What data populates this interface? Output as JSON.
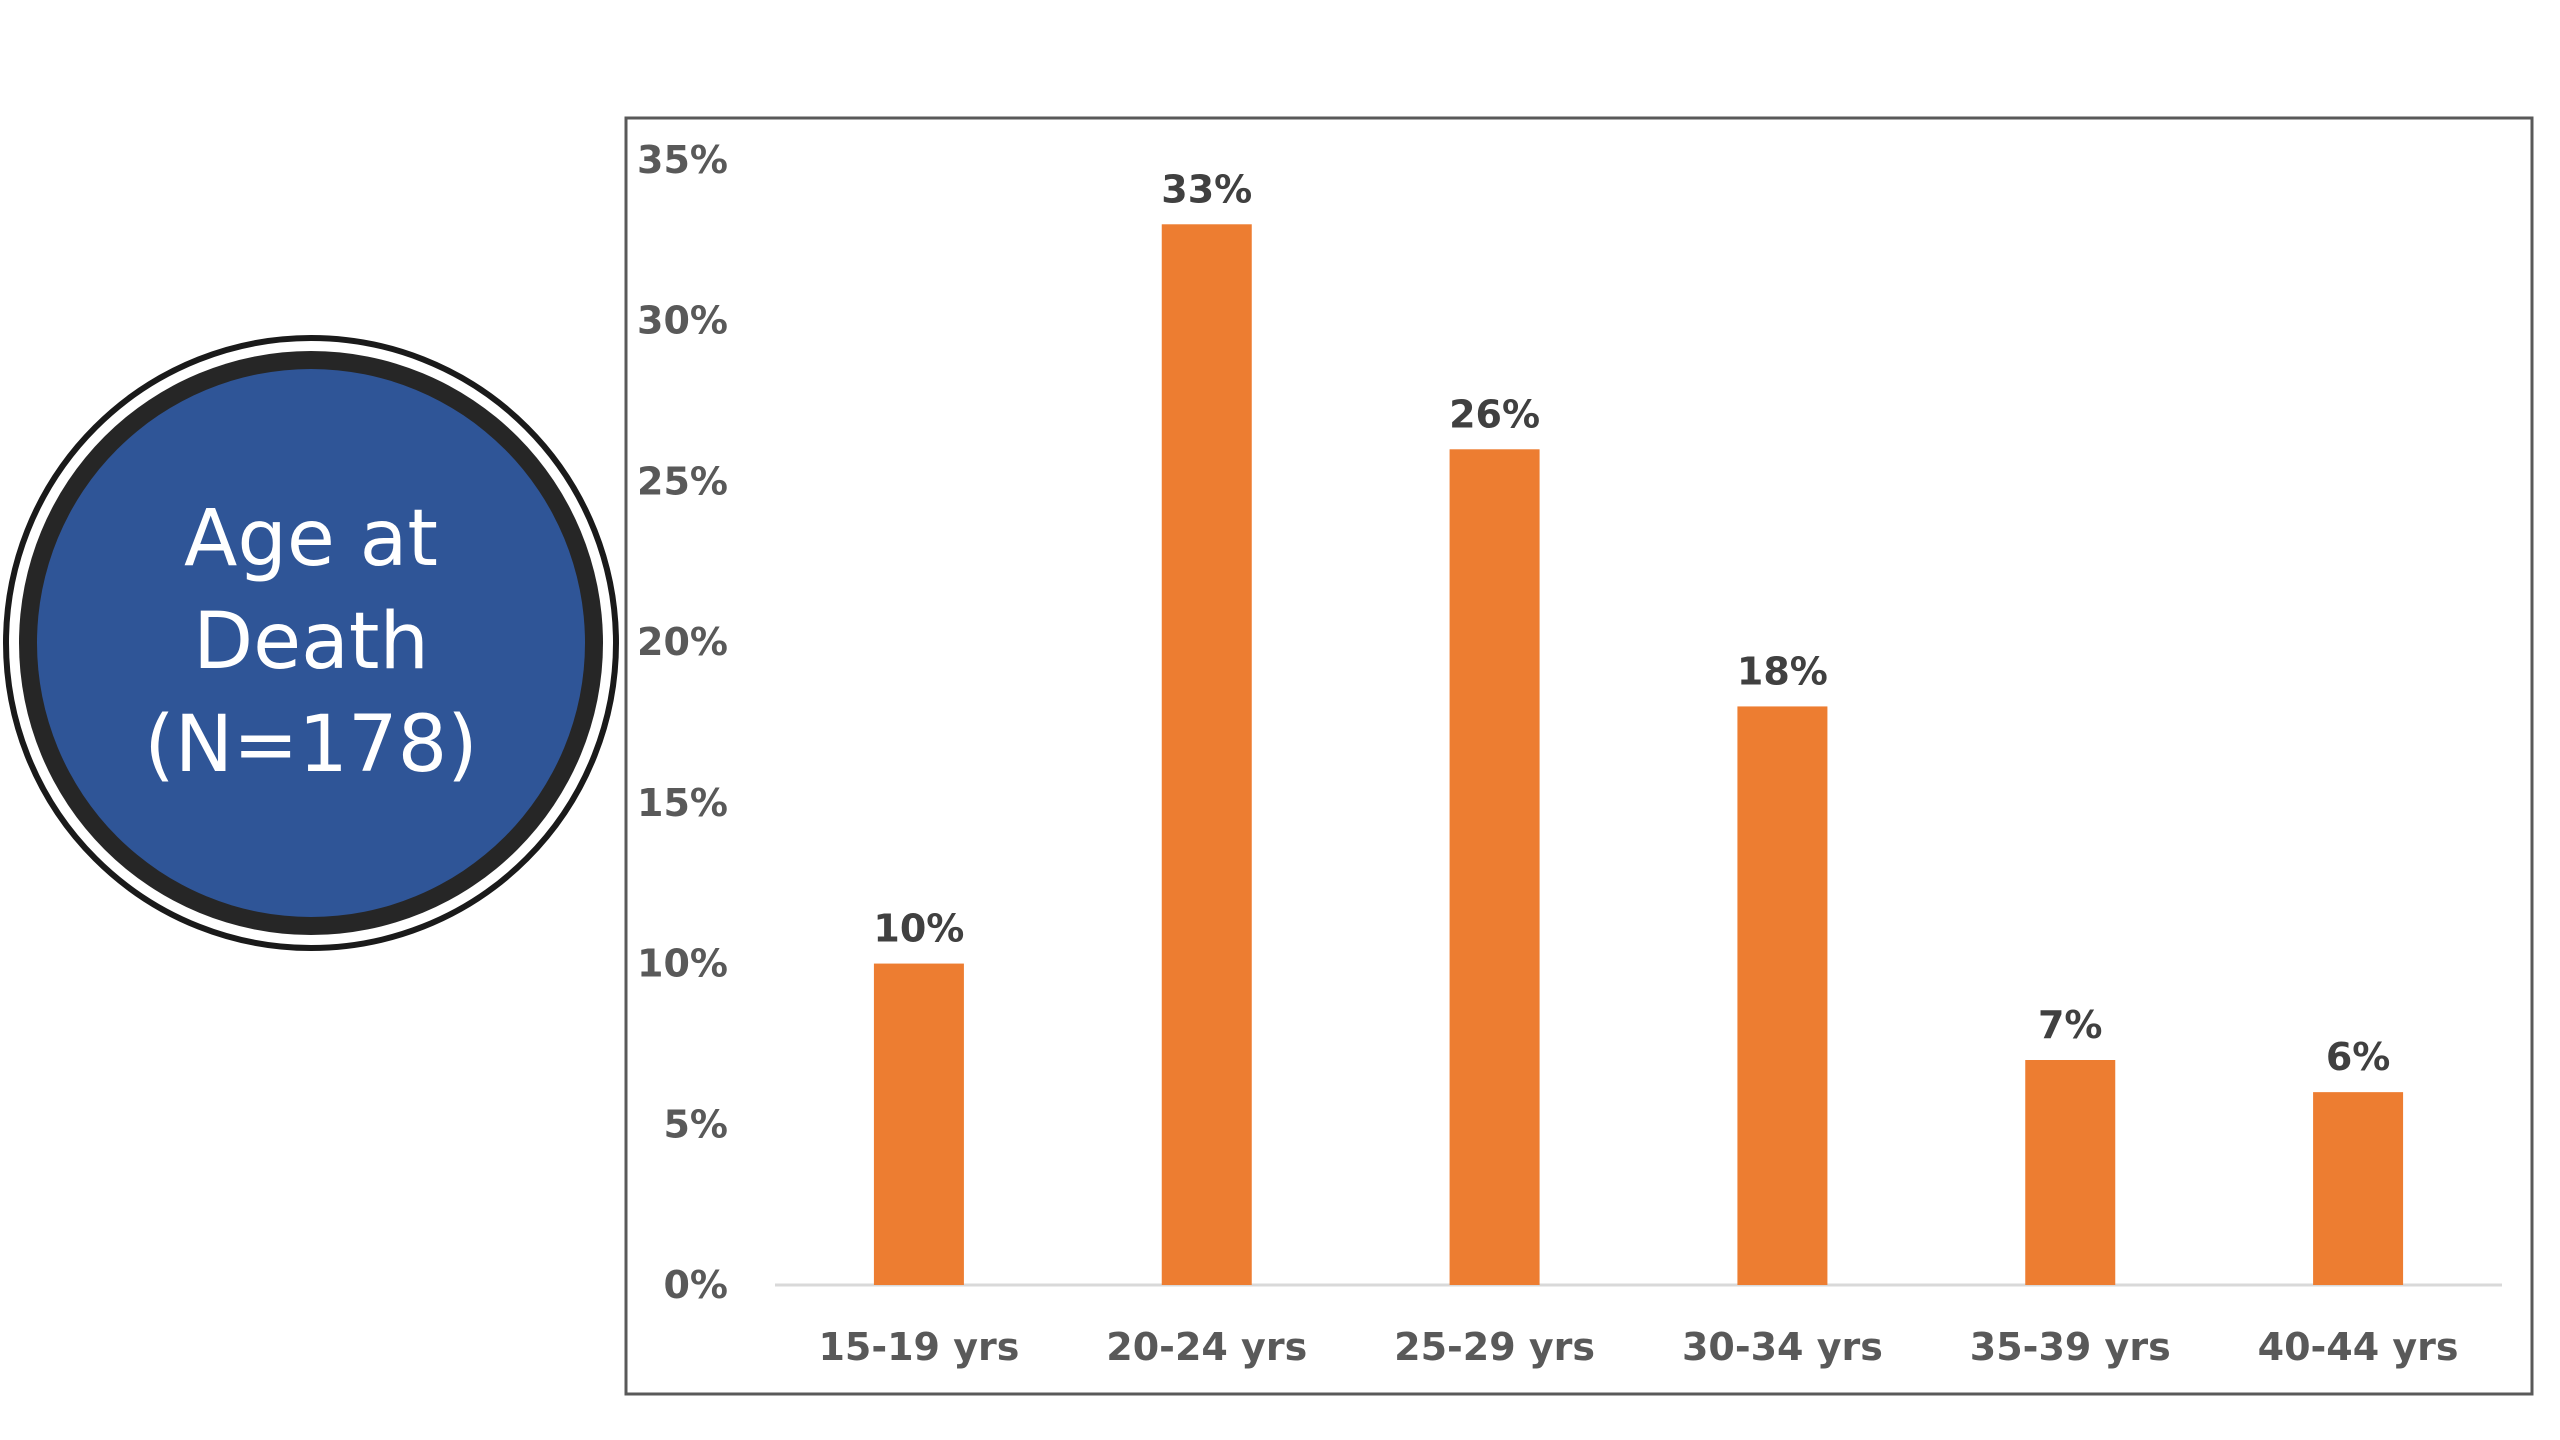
{
  "badge": {
    "line1": "Age at",
    "line2": "Death",
    "line3": "(N=178)",
    "fill_color": "#2F5597",
    "ring_color": "#262626"
  },
  "chart_data": {
    "type": "bar",
    "categories": [
      "15-19 yrs",
      "20-24 yrs",
      "25-29 yrs",
      "30-34 yrs",
      "35-39 yrs",
      "40-44 yrs"
    ],
    "values": [
      10,
      33,
      26,
      18,
      7,
      6
    ],
    "data_labels": [
      "10%",
      "33%",
      "26%",
      "18%",
      "7%",
      "6%"
    ],
    "ylim": [
      0,
      35
    ],
    "yticks": [
      0,
      5,
      10,
      15,
      20,
      25,
      30,
      35
    ],
    "ytick_labels": [
      "0%",
      "5%",
      "10%",
      "15%",
      "20%",
      "25%",
      "30%",
      "35%"
    ],
    "bar_color": "#ED7D31",
    "grid": false,
    "legend": "none"
  }
}
